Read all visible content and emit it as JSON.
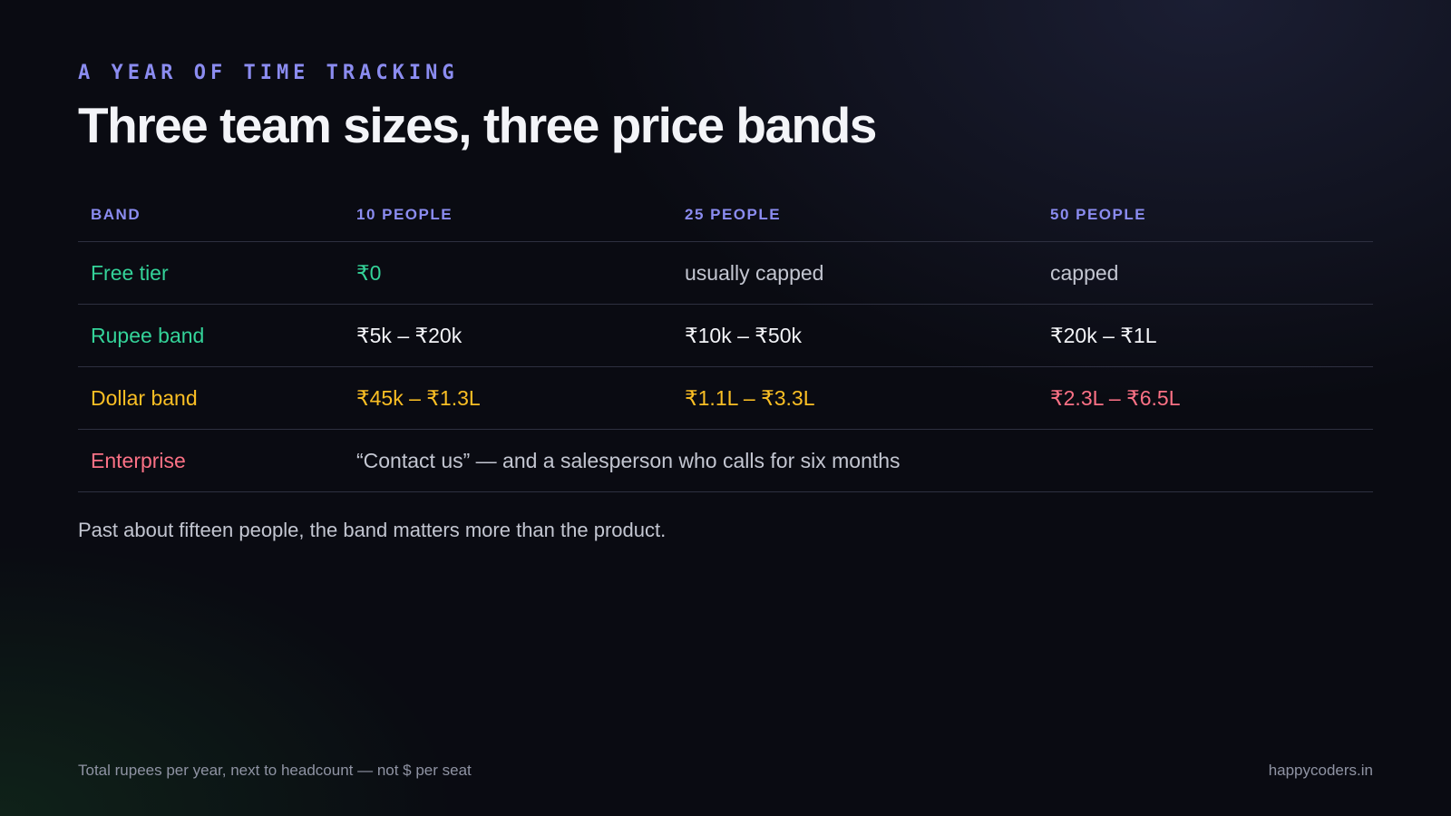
{
  "header": {
    "eyebrow": "A YEAR OF TIME TRACKING",
    "title": "Three team sizes, three price bands"
  },
  "table": {
    "columns": [
      "BAND",
      "10 PEOPLE",
      "25 PEOPLE",
      "50 PEOPLE"
    ],
    "rows": [
      [
        "Free tier",
        "₹0",
        "usually capped",
        "capped"
      ],
      [
        "Rupee band",
        "₹5k – ₹20k",
        "₹10k – ₹50k",
        "₹20k – ₹1L"
      ],
      [
        "Dollar band",
        "₹45k – ₹1.3L",
        "₹1.1L – ₹3.3L",
        "₹2.3L – ₹6.5L"
      ],
      [
        "Enterprise",
        "“Contact us” — and a salesperson who calls for six months"
      ]
    ]
  },
  "note": "Past about fifteen people, the band matters more than the product.",
  "footer": {
    "left": "Total rupees per year, next to headcount — not $ per seat",
    "right": "happycoders.in"
  }
}
